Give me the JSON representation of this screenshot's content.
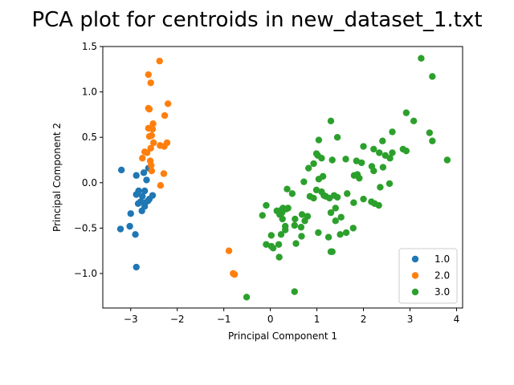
{
  "chart_data": {
    "type": "scatter",
    "title": "PCA plot for centroids in new_dataset_1.txt",
    "xlabel": "Principal Component 1",
    "ylabel": "Principal Component 2",
    "xlim": [
      -3.6,
      4.13
    ],
    "ylim": [
      -1.38,
      1.5
    ],
    "xticks": [
      -3,
      -2,
      -1,
      0,
      1,
      2,
      3,
      4
    ],
    "yticks": [
      -1.0,
      -0.5,
      0.0,
      0.5,
      1.0,
      1.5
    ],
    "xtick_labels": [
      "−3",
      "−2",
      "−1",
      "0",
      "1",
      "2",
      "3",
      "4"
    ],
    "ytick_labels": [
      "−1.0",
      "−0.5",
      "0.0",
      "0.5",
      "1.0",
      "1.5"
    ],
    "grid": false,
    "legend_position": "lower-right",
    "series": [
      {
        "name": "1.0",
        "color": "#1f77b4",
        "points": [
          [
            -3.2,
            0.14
          ],
          [
            -3.22,
            -0.51
          ],
          [
            -3.0,
            -0.34
          ],
          [
            -3.02,
            -0.48
          ],
          [
            -2.9,
            -0.57
          ],
          [
            -2.88,
            -0.93
          ],
          [
            -2.88,
            0.08
          ],
          [
            -2.72,
            0.11
          ],
          [
            -2.66,
            0.03
          ],
          [
            -2.62,
            0.16
          ],
          [
            -2.88,
            -0.13
          ],
          [
            -2.83,
            -0.09
          ],
          [
            -2.7,
            -0.09
          ],
          [
            -2.75,
            -0.15
          ],
          [
            -2.6,
            -0.18
          ],
          [
            -2.53,
            -0.14
          ],
          [
            -2.79,
            -0.21
          ],
          [
            -2.69,
            -0.22
          ],
          [
            -2.84,
            -0.23
          ],
          [
            -2.7,
            -0.26
          ],
          [
            -2.76,
            -0.31
          ],
          [
            -2.63,
            -0.2
          ]
        ]
      },
      {
        "name": "2.0",
        "color": "#ff7f0e",
        "points": [
          [
            -2.38,
            1.34
          ],
          [
            -2.62,
            1.19
          ],
          [
            -2.57,
            1.1
          ],
          [
            -2.2,
            0.87
          ],
          [
            -2.62,
            0.82
          ],
          [
            -2.6,
            0.81
          ],
          [
            -2.27,
            0.74
          ],
          [
            -2.52,
            0.65
          ],
          [
            -2.62,
            0.6
          ],
          [
            -2.53,
            0.59
          ],
          [
            -2.55,
            0.52
          ],
          [
            -2.6,
            0.51
          ],
          [
            -2.51,
            0.44
          ],
          [
            -2.22,
            0.44
          ],
          [
            -2.37,
            0.41
          ],
          [
            -2.28,
            0.4
          ],
          [
            -2.57,
            0.38
          ],
          [
            -2.7,
            0.34
          ],
          [
            -2.65,
            0.33
          ],
          [
            -2.75,
            0.27
          ],
          [
            -2.58,
            0.24
          ],
          [
            -2.56,
            0.19
          ],
          [
            -2.55,
            0.13
          ],
          [
            -2.29,
            0.1
          ],
          [
            -2.36,
            -0.03
          ],
          [
            -0.89,
            -0.75
          ],
          [
            -0.8,
            -1.0
          ],
          [
            -0.77,
            -1.01
          ]
        ]
      },
      {
        "name": "3.0",
        "color": "#2ca02c",
        "points": [
          [
            3.24,
            1.37
          ],
          [
            3.48,
            1.17
          ],
          [
            2.92,
            0.77
          ],
          [
            3.08,
            0.68
          ],
          [
            3.42,
            0.55
          ],
          [
            3.48,
            0.46
          ],
          [
            3.8,
            0.25
          ],
          [
            2.62,
            0.56
          ],
          [
            2.41,
            0.46
          ],
          [
            2.85,
            0.37
          ],
          [
            2.92,
            0.35
          ],
          [
            2.62,
            0.33
          ],
          [
            2.47,
            0.3
          ],
          [
            2.57,
            0.27
          ],
          [
            2.34,
            0.33
          ],
          [
            2.22,
            0.37
          ],
          [
            2.0,
            0.4
          ],
          [
            2.42,
            0.17
          ],
          [
            2.18,
            0.18
          ],
          [
            2.22,
            0.13
          ],
          [
            1.96,
            0.22
          ],
          [
            1.85,
            0.24
          ],
          [
            1.87,
            0.09
          ],
          [
            1.8,
            0.08
          ],
          [
            1.91,
            0.05
          ],
          [
            2.56,
            -0.01
          ],
          [
            2.36,
            -0.05
          ],
          [
            2.0,
            -0.18
          ],
          [
            2.17,
            -0.21
          ],
          [
            2.24,
            -0.23
          ],
          [
            2.33,
            -0.25
          ],
          [
            1.79,
            -0.22
          ],
          [
            1.3,
            0.68
          ],
          [
            1.44,
            0.5
          ],
          [
            1.62,
            0.26
          ],
          [
            1.33,
            0.25
          ],
          [
            1.04,
            0.47
          ],
          [
            1.1,
            0.27
          ],
          [
            0.99,
            0.32
          ],
          [
            1.02,
            0.3
          ],
          [
            0.93,
            0.21
          ],
          [
            0.82,
            0.16
          ],
          [
            0.72,
            0.01
          ],
          [
            1.13,
            0.07
          ],
          [
            1.04,
            0.04
          ],
          [
            0.85,
            -0.15
          ],
          [
            0.93,
            -0.17
          ],
          [
            0.99,
            -0.08
          ],
          [
            1.1,
            -0.1
          ],
          [
            1.15,
            -0.14
          ],
          [
            1.19,
            -0.15
          ],
          [
            1.27,
            -0.17
          ],
          [
            1.37,
            -0.14
          ],
          [
            1.44,
            -0.16
          ],
          [
            1.65,
            -0.12
          ],
          [
            1.3,
            -0.33
          ],
          [
            1.4,
            -0.28
          ],
          [
            1.52,
            -0.38
          ],
          [
            1.4,
            -0.42
          ],
          [
            1.78,
            -0.5
          ],
          [
            1.5,
            -0.57
          ],
          [
            1.63,
            -0.55
          ],
          [
            1.25,
            -0.6
          ],
          [
            1.03,
            -0.55
          ],
          [
            1.33,
            -0.76
          ],
          [
            1.3,
            -0.76
          ],
          [
            0.8,
            -0.37
          ],
          [
            0.68,
            -0.35
          ],
          [
            0.74,
            -0.42
          ],
          [
            0.66,
            -0.49
          ],
          [
            0.53,
            -0.4
          ],
          [
            0.52,
            -0.47
          ],
          [
            0.36,
            -0.07
          ],
          [
            0.47,
            -0.12
          ],
          [
            0.38,
            -0.28
          ],
          [
            0.27,
            -0.28
          ],
          [
            0.34,
            -0.29
          ],
          [
            0.24,
            -0.3
          ],
          [
            0.25,
            -0.33
          ],
          [
            0.14,
            -0.31
          ],
          [
            0.2,
            -0.35
          ],
          [
            0.26,
            -0.4
          ],
          [
            0.32,
            -0.48
          ],
          [
            0.23,
            -0.57
          ],
          [
            0.32,
            -0.52
          ],
          [
            0.18,
            -0.68
          ],
          [
            0.55,
            -0.67
          ],
          [
            0.67,
            -0.59
          ],
          [
            -0.17,
            -0.36
          ],
          [
            -0.09,
            -0.25
          ],
          [
            0.02,
            -0.58
          ],
          [
            -0.09,
            -0.68
          ],
          [
            0.02,
            -0.7
          ],
          [
            0.06,
            -0.72
          ],
          [
            0.19,
            -0.82
          ],
          [
            0.52,
            -1.2
          ],
          [
            -0.51,
            -1.26
          ]
        ]
      }
    ]
  }
}
